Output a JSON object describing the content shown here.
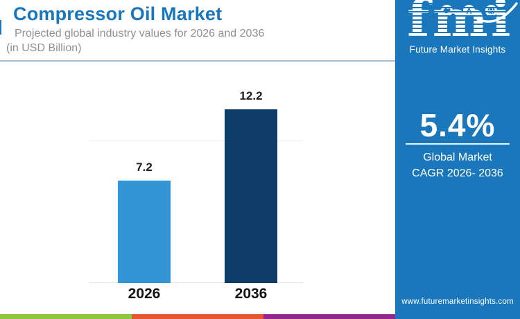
{
  "header": {
    "title": "Compressor Oil Market",
    "subtitle_line1": "Projected global industry values for 2026 and 2036",
    "subtitle_line2": "(in USD Billion)"
  },
  "chart_data": {
    "type": "bar",
    "title": "Compressor Oil Market",
    "subtitle": "Projected global industry values for 2026 and 2036 (in USD Billion)",
    "unit": "USD Billion",
    "categories": [
      "2026",
      "2036"
    ],
    "values": [
      7.2,
      12.2
    ],
    "value_labels": [
      "7.2",
      "12.2"
    ],
    "bar_colors": [
      "#3394d6",
      "#0d3c69"
    ],
    "ylim": [
      0,
      14
    ],
    "gridline_value": 10,
    "grid": "single faint horizontal gridline",
    "legend_position": "none"
  },
  "sidebar": {
    "background": "#1b77bb",
    "logo": {
      "wordmark": "fmi",
      "tagline": "Future Market Insights",
      "icons": [
        "map-icon",
        "compass-icon",
        "globe-icon"
      ]
    },
    "cagr_value": "5.4%",
    "cagr_label_line1": "Global Market",
    "cagr_label_line2": "CAGR 2026- 2036",
    "website": "www.futuremarketinsights.com"
  },
  "footer": {
    "stripe_colors": [
      "#8dc63f",
      "#e2572b",
      "#93278f"
    ]
  },
  "colors": {
    "title_blue": "#1877bc",
    "subtitle_gray": "#8f8f8f",
    "bar_light_blue": "#3394d6",
    "bar_navy": "#0d3c69",
    "sidebar_blue": "#1b77bb",
    "header_divider_blue": "#9dbfd9"
  }
}
